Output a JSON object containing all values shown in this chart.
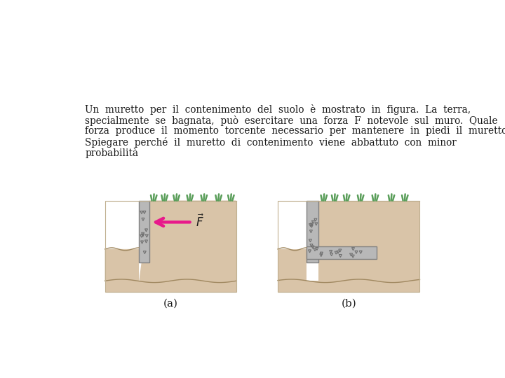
{
  "bg_color": "#ffffff",
  "soil_color": "#d9c4a8",
  "concrete_color": "#b8b8b8",
  "concrete_edge": "#808080",
  "grass_color": "#5a9e5a",
  "arrow_color": "#e8198b",
  "text_color": "#1a1a1a",
  "label_a": "(a)",
  "label_b": "(b)",
  "line1": "Un  muretto  per  il  contenimento  del  suolo  è  mostrato  in  figura.  La  terra,",
  "line2": "specialmente  se  bagnata,  può  esercitare  una  forza  F  notevole  sul  muro.  Quale",
  "line3": "forza  produce  il  momento  torcente  necessario  per  mantenere  in  piedi  il  muretto?",
  "line4": "Spiegare  perché  il  muretto  di  contenimento  viene  abbattuto  con  minor",
  "line5": "probabilità"
}
